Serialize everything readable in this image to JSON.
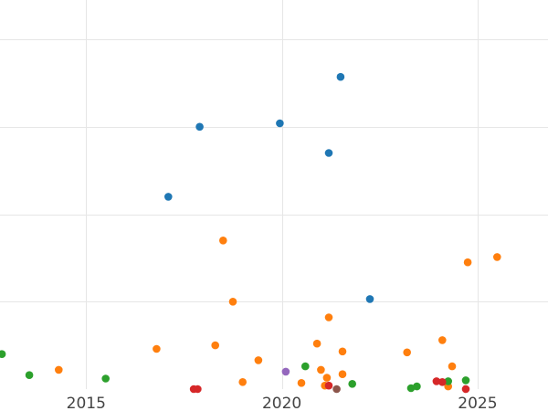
{
  "chart_data": {
    "type": "scatter",
    "title": "",
    "xlabel": "",
    "ylabel": "",
    "xlim": [
      2012.8,
      2026.8
    ],
    "ylim": [
      0,
      4.45
    ],
    "grid": true,
    "legend": "none",
    "x_ticks": [
      2015,
      2020,
      2025
    ],
    "x_tick_labels": [
      "2015",
      "2020",
      "2025"
    ],
    "y_gridlines": [
      1,
      2,
      3,
      4
    ],
    "series": [
      {
        "color": "#1f77b4",
        "points": [
          {
            "x": 2017.1,
            "y": 2.2
          },
          {
            "x": 2017.9,
            "y": 3.0
          },
          {
            "x": 2019.95,
            "y": 3.04
          },
          {
            "x": 2021.2,
            "y": 2.7
          },
          {
            "x": 2021.5,
            "y": 3.57
          },
          {
            "x": 2022.25,
            "y": 1.03
          }
        ]
      },
      {
        "color": "#ff7f0e",
        "points": [
          {
            "x": 2014.3,
            "y": 0.22
          },
          {
            "x": 2016.8,
            "y": 0.46
          },
          {
            "x": 2018.3,
            "y": 0.5
          },
          {
            "x": 2018.5,
            "y": 1.7
          },
          {
            "x": 2018.75,
            "y": 1.0
          },
          {
            "x": 2019.0,
            "y": 0.08
          },
          {
            "x": 2019.4,
            "y": 0.33
          },
          {
            "x": 2020.5,
            "y": 0.07
          },
          {
            "x": 2020.9,
            "y": 0.52
          },
          {
            "x": 2021.0,
            "y": 0.22
          },
          {
            "x": 2021.1,
            "y": 0.04
          },
          {
            "x": 2021.15,
            "y": 0.13
          },
          {
            "x": 2021.2,
            "y": 0.82
          },
          {
            "x": 2021.55,
            "y": 0.17
          },
          {
            "x": 2021.55,
            "y": 0.43
          },
          {
            "x": 2023.2,
            "y": 0.42
          },
          {
            "x": 2024.1,
            "y": 0.56
          },
          {
            "x": 2024.25,
            "y": 0.03
          },
          {
            "x": 2024.35,
            "y": 0.26
          },
          {
            "x": 2024.75,
            "y": 1.45
          },
          {
            "x": 2025.5,
            "y": 1.51
          }
        ]
      },
      {
        "color": "#2ca02c",
        "points": [
          {
            "x": 2012.85,
            "y": 0.4
          },
          {
            "x": 2013.55,
            "y": 0.16
          },
          {
            "x": 2015.5,
            "y": 0.12
          },
          {
            "x": 2020.6,
            "y": 0.26
          },
          {
            "x": 2021.8,
            "y": 0.06
          },
          {
            "x": 2023.3,
            "y": 0.01
          },
          {
            "x": 2023.45,
            "y": 0.03
          },
          {
            "x": 2024.25,
            "y": 0.09
          },
          {
            "x": 2024.7,
            "y": 0.1
          }
        ]
      },
      {
        "color": "#d62728",
        "points": [
          {
            "x": 2017.75,
            "y": 0.0
          },
          {
            "x": 2017.85,
            "y": 0.0
          },
          {
            "x": 2021.2,
            "y": 0.04
          },
          {
            "x": 2023.95,
            "y": 0.09
          },
          {
            "x": 2024.1,
            "y": 0.08
          },
          {
            "x": 2024.7,
            "y": 0.0
          }
        ]
      },
      {
        "color": "#9467bd",
        "points": [
          {
            "x": 2020.1,
            "y": 0.2
          }
        ]
      },
      {
        "color": "#8c564b",
        "points": [
          {
            "x": 2021.4,
            "y": 0.0
          }
        ]
      }
    ]
  }
}
